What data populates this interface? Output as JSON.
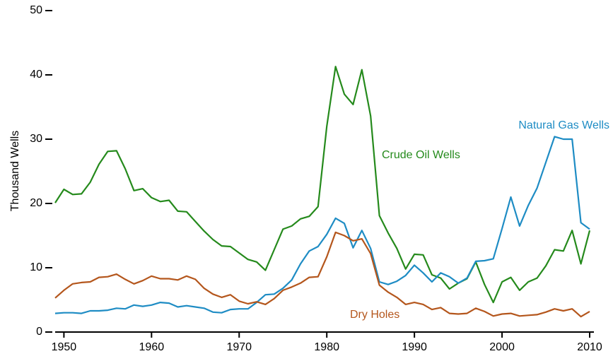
{
  "chart_data": {
    "type": "line",
    "y_label": "Thousand Wells",
    "x": [
      1949,
      1950,
      1951,
      1952,
      1953,
      1954,
      1955,
      1956,
      1957,
      1958,
      1959,
      1960,
      1961,
      1962,
      1963,
      1964,
      1965,
      1966,
      1967,
      1968,
      1969,
      1970,
      1971,
      1972,
      1973,
      1974,
      1975,
      1976,
      1977,
      1978,
      1979,
      1980,
      1981,
      1982,
      1983,
      1984,
      1985,
      1986,
      1987,
      1988,
      1989,
      1990,
      1991,
      1992,
      1993,
      1994,
      1995,
      1996,
      1997,
      1998,
      1999,
      2000,
      2001,
      2002,
      2003,
      2004,
      2005,
      2006,
      2007,
      2008,
      2009,
      2010
    ],
    "xlim": [
      1949,
      2010
    ],
    "xticks": [
      1950,
      1960,
      1970,
      1980,
      1990,
      2000,
      2010
    ],
    "ylim": [
      0,
      50
    ],
    "yticks": [
      0,
      10,
      20,
      30,
      40,
      50
    ],
    "series": [
      {
        "name": "Crude Oil Wells",
        "color": "#258a1c",
        "values": [
          20.1,
          22.2,
          21.4,
          21.5,
          23.3,
          26.1,
          28.1,
          28.2,
          25.4,
          22.0,
          22.3,
          20.9,
          20.3,
          20.5,
          18.8,
          18.7,
          17.2,
          15.7,
          14.4,
          13.4,
          13.3,
          12.3,
          11.3,
          10.9,
          9.6,
          12.8,
          16.0,
          16.5,
          17.6,
          18.0,
          19.5,
          32.0,
          41.3,
          37.0,
          35.4,
          40.8,
          33.6,
          18.1,
          15.4,
          13.0,
          9.8,
          12.1,
          12.0,
          8.9,
          8.4,
          6.7,
          7.6,
          8.3,
          10.9,
          7.4,
          4.6,
          7.8,
          8.5,
          6.5,
          7.8,
          8.4,
          10.3,
          12.8,
          12.6,
          15.8,
          10.6,
          15.8
        ]
      },
      {
        "name": "Natural Gas Wells",
        "color": "#1e8cc4",
        "values": [
          2.9,
          3.0,
          3.0,
          2.9,
          3.3,
          3.3,
          3.4,
          3.7,
          3.6,
          4.2,
          4.0,
          4.2,
          4.6,
          4.5,
          3.9,
          4.1,
          3.9,
          3.7,
          3.1,
          3.0,
          3.5,
          3.6,
          3.6,
          4.6,
          5.8,
          5.9,
          6.8,
          8.1,
          10.6,
          12.6,
          13.3,
          15.2,
          17.7,
          16.9,
          13.1,
          15.8,
          13.0,
          7.8,
          7.4,
          7.9,
          8.8,
          10.4,
          9.2,
          7.8,
          9.2,
          8.6,
          7.6,
          8.4,
          11.0,
          11.1,
          11.4,
          16.1,
          21.0,
          16.5,
          19.7,
          22.4,
          26.4,
          30.4,
          30.0,
          30.0,
          17.0,
          16.0
        ]
      },
      {
        "name": "Dry Holes",
        "color": "#b4561c",
        "values": [
          5.3,
          6.5,
          7.5,
          7.7,
          7.8,
          8.5,
          8.6,
          9.0,
          8.2,
          7.5,
          8.0,
          8.7,
          8.3,
          8.3,
          8.1,
          8.7,
          8.2,
          6.8,
          5.9,
          5.4,
          5.8,
          4.8,
          4.4,
          4.7,
          4.3,
          5.2,
          6.5,
          7.0,
          7.6,
          8.5,
          8.6,
          11.7,
          15.5,
          15.0,
          14.2,
          14.5,
          12.2,
          7.3,
          6.2,
          5.4,
          4.3,
          4.6,
          4.3,
          3.5,
          3.8,
          2.9,
          2.8,
          2.9,
          3.7,
          3.2,
          2.5,
          2.8,
          2.9,
          2.5,
          2.6,
          2.7,
          3.1,
          3.6,
          3.3,
          3.6,
          2.4,
          3.2
        ]
      }
    ]
  }
}
